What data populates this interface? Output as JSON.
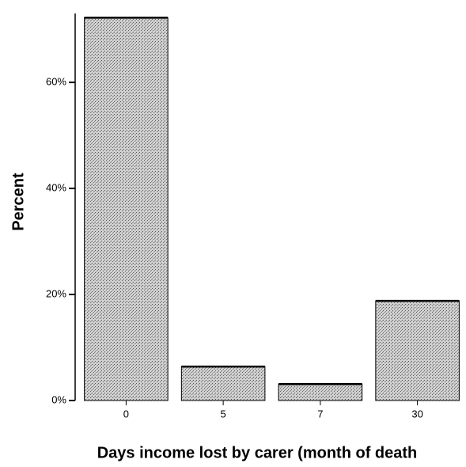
{
  "chart_data": {
    "type": "bar",
    "x_label": "Days income lost by carer (month of death",
    "y_label": "Percent",
    "categories": [
      "0",
      "5",
      "7",
      "30"
    ],
    "values": [
      72.2,
      6.4,
      3.1,
      18.8
    ],
    "color": "#b4b4b4",
    "ylim": [
      0,
      73
    ],
    "yticks": [
      {
        "value": 0,
        "label": "0%"
      },
      {
        "value": 20,
        "label": "20%"
      },
      {
        "value": 40,
        "label": "40%"
      },
      {
        "value": 60,
        "label": "60%"
      }
    ],
    "grid": false
  }
}
